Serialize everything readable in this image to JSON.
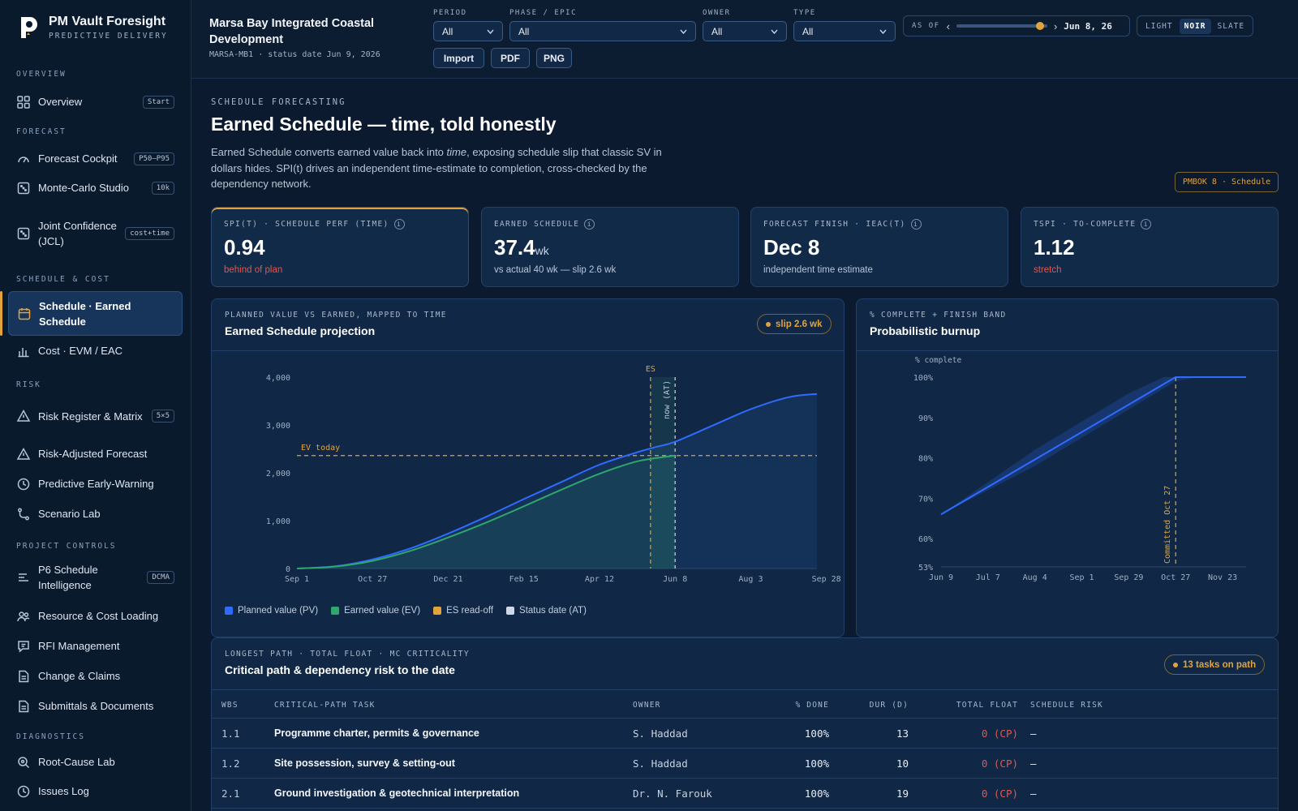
{
  "brand": {
    "name": "PM Vault Foresight",
    "subtitle": "PREDICTIVE DELIVERY"
  },
  "sidebar": {
    "sections": [
      {
        "label": "OVERVIEW",
        "items": [
          {
            "label": "Overview",
            "badge": "Start",
            "icon": "grid-icon"
          }
        ]
      },
      {
        "label": "FORECAST",
        "items": [
          {
            "label": "Forecast Cockpit",
            "badge": "P50–P95",
            "icon": "gauge-icon"
          },
          {
            "label": "Monte-Carlo Studio",
            "badge": "10k",
            "icon": "dice-icon"
          },
          {
            "label": "Joint Confidence (JCL)",
            "badge": "cost+time",
            "icon": "dice-icon"
          }
        ]
      },
      {
        "label": "SCHEDULE & COST",
        "items": [
          {
            "label": "Schedule · Earned Schedule",
            "badge": "",
            "icon": "calendar-icon",
            "active": true
          },
          {
            "label": "Cost · EVM / EAC",
            "badge": "",
            "icon": "bar-chart-icon"
          }
        ]
      },
      {
        "label": "RISK",
        "items": [
          {
            "label": "Risk Register & Matrix",
            "badge": "5×5",
            "icon": "warning-icon"
          },
          {
            "label": "Risk-Adjusted Forecast",
            "badge": "",
            "icon": "warning-icon"
          },
          {
            "label": "Predictive Early-Warning",
            "badge": "",
            "icon": "clock-icon"
          },
          {
            "label": "Scenario Lab",
            "badge": "",
            "icon": "branch-icon"
          }
        ]
      },
      {
        "label": "PROJECT CONTROLS",
        "items": [
          {
            "label": "P6 Schedule Intelligence",
            "badge": "DCMA",
            "icon": "lines-icon"
          },
          {
            "label": "Resource & Cost Loading",
            "badge": "",
            "icon": "people-icon"
          },
          {
            "label": "RFI Management",
            "badge": "",
            "icon": "rfi-icon"
          },
          {
            "label": "Change & Claims",
            "badge": "",
            "icon": "document-icon"
          },
          {
            "label": "Submittals & Documents",
            "badge": "",
            "icon": "document-icon"
          }
        ]
      },
      {
        "label": "DIAGNOSTICS",
        "items": [
          {
            "label": "Root-Cause Lab",
            "badge": "",
            "icon": "search-icon"
          },
          {
            "label": "Issues Log",
            "badge": "",
            "icon": "clock-icon"
          }
        ]
      }
    ]
  },
  "header": {
    "project_title": "Marsa Bay Integrated Coastal Development",
    "project_sub": "MARSA-MB1 · status date Jun 9, 2026",
    "filters": [
      {
        "label": "PERIOD",
        "value": "All"
      },
      {
        "label": "PHASE / EPIC",
        "value": "All"
      },
      {
        "label": "OWNER",
        "value": "All"
      },
      {
        "label": "TYPE",
        "value": "All"
      }
    ],
    "buttons": {
      "import": "Import",
      "pdf": "PDF",
      "png": "PNG"
    },
    "as_of": {
      "label": "AS OF",
      "date": "Jun 8, 26",
      "position_fraction": 0.96
    },
    "themes": {
      "light": "LIGHT",
      "noir": "NOIR",
      "slate": "SLATE",
      "selected": "NOIR"
    }
  },
  "page": {
    "eyebrow": "SCHEDULE FORECASTING",
    "title": "Earned Schedule — time, told honestly",
    "desc_pre": "Earned Schedule converts earned value back into ",
    "desc_em": "time",
    "desc_post": ", exposing schedule slip that classic SV in dollars hides. SPI(t) drives an independent time-estimate to completion, cross-checked by the dependency network.",
    "reference_tag": "PMBOK 8 · Schedule"
  },
  "kpis": [
    {
      "label": "SPI(T) · SCHEDULE PERF (TIME)",
      "value": "0.94",
      "unit": "",
      "note": "behind of plan",
      "note_color": "red"
    },
    {
      "label": "EARNED SCHEDULE",
      "value": "37.4",
      "unit": "wk",
      "note": "vs actual 40 wk — slip 2.6 wk",
      "note_color": "muted"
    },
    {
      "label": "FORECAST FINISH · IEAC(T)",
      "value": "Dec 8",
      "unit": "",
      "note": "independent time estimate",
      "note_color": "muted"
    },
    {
      "label": "TSPI · TO-COMPLETE",
      "value": "1.12",
      "unit": "",
      "note": "stretch",
      "note_color": "red"
    }
  ],
  "es_panel": {
    "eyebrow": "PLANNED VALUE VS EARNED, MAPPED TO TIME",
    "title": "Earned Schedule projection",
    "pill": "slip 2.6 wk",
    "legend": [
      {
        "label": "Planned value (PV)",
        "color": "#2f6bff"
      },
      {
        "label": "Earned value (EV)",
        "color": "#2fa66b"
      },
      {
        "label": "ES read-off",
        "color": "#e3a33b"
      },
      {
        "label": "Status date (AT)",
        "color": "#cfd8e6"
      }
    ]
  },
  "burnup_panel": {
    "eyebrow": "% COMPLETE + FINISH BAND",
    "title": "Probabilistic burnup",
    "clipped_label": "% complete",
    "committed_label": "Committed Oct 27"
  },
  "critical_panel": {
    "eyebrow": "LONGEST PATH · TOTAL FLOAT · MC CRITICALITY",
    "title": "Critical path & dependency risk to the date",
    "pill": "13 tasks on path",
    "columns": {
      "wbs": "WBS",
      "task": "CRITICAL-PATH TASK",
      "owner": "OWNER",
      "done": "% DONE",
      "dur": "DUR (D)",
      "float": "TOTAL FLOAT",
      "risk": "SCHEDULE RISK"
    },
    "rows": [
      {
        "wbs": "1.1",
        "task": "Programme charter, permits & governance",
        "owner": "S. Haddad",
        "done": "100%",
        "dur": "13",
        "float": "0 (CP)",
        "risk": "—"
      },
      {
        "wbs": "1.2",
        "task": "Site possession, survey & setting-out",
        "owner": "S. Haddad",
        "done": "100%",
        "dur": "10",
        "float": "0 (CP)",
        "risk": "—"
      },
      {
        "wbs": "2.1",
        "task": "Ground investigation & geotechnical interpretation",
        "owner": "Dr. N. Farouk",
        "done": "100%",
        "dur": "19",
        "float": "0 (CP)",
        "risk": "—"
      }
    ]
  },
  "chart_data": [
    {
      "type": "line",
      "title": "Earned Schedule projection",
      "x_ticks": [
        "Sep 1",
        "Oct 27",
        "Dec 21",
        "Feb 15",
        "Apr 12",
        "Jun 8",
        "Aug 3",
        "Sep 28"
      ],
      "y_ticks": [
        "0",
        "1,000",
        "2,000",
        "3,000",
        "4,000"
      ],
      "ylim": [
        0,
        4000
      ],
      "x_week_range": [
        0,
        55
      ],
      "series": [
        {
          "name": "Planned value (PV)",
          "x_weeks": [
            0,
            4,
            8,
            12,
            16,
            20,
            24,
            28,
            32,
            36,
            38,
            40,
            44,
            48,
            52,
            55
          ],
          "values": [
            0,
            45,
            190,
            420,
            730,
            1080,
            1450,
            1810,
            2170,
            2430,
            2540,
            2650,
            2990,
            3330,
            3580,
            3650
          ]
        },
        {
          "name": "Earned value (EV)",
          "x_weeks": [
            0,
            4,
            8,
            12,
            16,
            20,
            24,
            28,
            32,
            36,
            40
          ],
          "values": [
            0,
            40,
            160,
            370,
            650,
            960,
            1300,
            1650,
            1980,
            2240,
            2360
          ]
        }
      ],
      "annotations": {
        "ev_today_label": "EV today",
        "ev_today_value": 2360,
        "es_label": "ES",
        "es_weeks": 37.4,
        "at_label": "now (AT)",
        "at_weeks": 40
      },
      "legend_position": "bottom-left",
      "grid": false
    },
    {
      "type": "area",
      "title": "Probabilistic burnup",
      "x_ticks": [
        "Jun 9",
        "Jul 7",
        "Aug 4",
        "Sep 1",
        "Sep 29",
        "Oct 27",
        "Nov 23"
      ],
      "y_ticks": [
        "53%",
        "60%",
        "70%",
        "80%",
        "90%",
        "100%"
      ],
      "ylim": [
        53,
        100
      ],
      "x_week_range": [
        0,
        26
      ],
      "series": [
        {
          "name": "% complete (median)",
          "x_weeks": [
            0,
            20,
            21,
            26
          ],
          "values": [
            66,
            100,
            100,
            100
          ]
        },
        {
          "name": "band upper",
          "x_weeks": [
            0,
            8,
            16,
            19,
            26
          ],
          "values": [
            66,
            82,
            96,
            100,
            100
          ]
        },
        {
          "name": "band lower",
          "x_weeks": [
            0,
            8,
            16,
            20,
            22,
            26
          ],
          "values": [
            66,
            78,
            92,
            99,
            100,
            100
          ]
        }
      ],
      "annotations": {
        "committed_label": "Committed Oct 27",
        "committed_weeks": 20
      },
      "grid": false
    }
  ]
}
